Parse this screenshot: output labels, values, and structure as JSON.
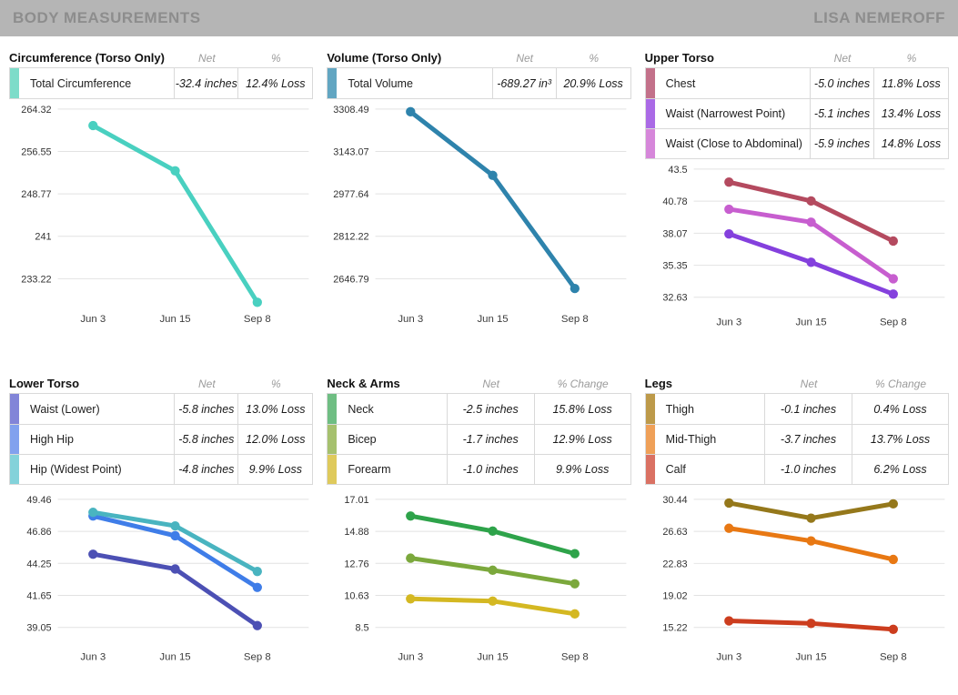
{
  "header": {
    "title": "BODY MEASUREMENTS",
    "user": "LISA NEMEROFF"
  },
  "chart_data": [
    {
      "type": "line",
      "title": "Circumference (Torso Only)",
      "columns": {
        "net": "Net",
        "pct": "%"
      },
      "categories": [
        "Jun 3",
        "Jun 15",
        "Sep 8"
      ],
      "y_ticks": [
        "264.32",
        "256.55",
        "248.77",
        "241",
        "233.22"
      ],
      "layout": {
        "label_col": "wide",
        "chart_size": "tall",
        "grid": "horizontal-only"
      },
      "series": [
        {
          "name": "Total Circumference",
          "net": "-32.4 inches",
          "pct": "12.4% Loss",
          "color": "#49d0c0",
          "swatch": "#7ddcc9",
          "values": [
            261.3,
            253.0,
            228.9
          ]
        }
      ]
    },
    {
      "type": "line",
      "title": "Volume (Torso Only)",
      "columns": {
        "net": "Net",
        "pct": "%"
      },
      "categories": [
        "Jun 3",
        "Jun 15",
        "Sep 8"
      ],
      "y_ticks": [
        "3308.49",
        "3143.07",
        "2977.64",
        "2812.22",
        "2646.79"
      ],
      "layout": {
        "label_col": "wide",
        "chart_size": "tall",
        "grid": "horizontal-only"
      },
      "series": [
        {
          "name": "Total Volume",
          "net": "-689.27 in³",
          "pct": "20.9% Loss",
          "color": "#2e83ac",
          "swatch": "#62a6c2",
          "values": [
            3298.2,
            3050.0,
            2608.9
          ]
        }
      ]
    },
    {
      "type": "line",
      "title": "Upper Torso",
      "columns": {
        "net": "Net",
        "pct": "%"
      },
      "categories": [
        "Jun 3",
        "Jun 15",
        "Sep 8"
      ],
      "y_ticks": [
        "43.5",
        "40.78",
        "38.07",
        "35.35",
        "32.63"
      ],
      "layout": {
        "label_col": "wide",
        "chart_size": "short-top",
        "grid": "horizontal-only"
      },
      "series": [
        {
          "name": "Chest",
          "net": "-5.0 inches",
          "pct": "11.8% Loss",
          "color": "#b44a5f",
          "swatch": "#c3718a",
          "values": [
            42.4,
            40.8,
            37.4
          ]
        },
        {
          "name": "Waist (Narrowest Point)",
          "net": "-5.1 inches",
          "pct": "13.4% Loss",
          "color": "#8440dd",
          "swatch": "#aa6ae6",
          "values": [
            38.0,
            35.6,
            32.9
          ]
        },
        {
          "name": "Waist (Close to Abdominal)",
          "net": "-5.9 inches",
          "pct": "14.8% Loss",
          "color": "#c75ecf",
          "swatch": "#d687da",
          "values": [
            40.1,
            39.0,
            34.2
          ]
        }
      ]
    },
    {
      "type": "line",
      "title": "Lower Torso",
      "columns": {
        "net": "Net",
        "pct": "%"
      },
      "categories": [
        "Jun 3",
        "Jun 15",
        "Sep 8"
      ],
      "y_ticks": [
        "49.46",
        "46.86",
        "44.25",
        "41.65",
        "39.05"
      ],
      "layout": {
        "label_col": "wide",
        "chart_size": "bottom",
        "grid": "horizontal-only"
      },
      "series": [
        {
          "name": "Waist (Lower)",
          "net": "-5.8 inches",
          "pct": "13.0% Loss",
          "color": "#4c50b4",
          "swatch": "#8285d8",
          "values": [
            45.0,
            43.8,
            39.2
          ]
        },
        {
          "name": "High Hip",
          "net": "-5.8 inches",
          "pct": "12.0% Loss",
          "color": "#3f7de8",
          "swatch": "#81a1ee",
          "values": [
            48.1,
            46.5,
            42.3
          ]
        },
        {
          "name": "Hip (Widest Point)",
          "net": "-4.8 inches",
          "pct": "9.9% Loss",
          "color": "#49b4c0",
          "swatch": "#83d2da",
          "values": [
            48.4,
            47.3,
            43.6
          ]
        }
      ]
    },
    {
      "type": "line",
      "title": "Neck & Arms",
      "columns": {
        "net": "Net",
        "pct": "% Change"
      },
      "categories": [
        "Jun 3",
        "Jun 15",
        "Sep 8"
      ],
      "y_ticks": [
        "17.01",
        "14.88",
        "12.76",
        "10.63",
        "8.5"
      ],
      "layout": {
        "label_col": "narrow",
        "chart_size": "bottom",
        "grid": "horizontal-only"
      },
      "series": [
        {
          "name": "Neck",
          "net": "-2.5 inches",
          "pct": "15.8% Loss",
          "color": "#2ea34a",
          "swatch": "#6fbe83",
          "values": [
            15.9,
            14.9,
            13.4
          ]
        },
        {
          "name": "Bicep",
          "net": "-1.7 inches",
          "pct": "12.9% Loss",
          "color": "#7ba83c",
          "swatch": "#a6c16e",
          "values": [
            13.1,
            12.3,
            11.4
          ]
        },
        {
          "name": "Forearm",
          "net": "-1.0 inches",
          "pct": "9.9% Loss",
          "color": "#d4b822",
          "swatch": "#dfca5c",
          "values": [
            10.4,
            10.25,
            9.4
          ]
        }
      ]
    },
    {
      "type": "line",
      "title": "Legs",
      "columns": {
        "net": "Net",
        "pct": "% Change"
      },
      "categories": [
        "Jun 3",
        "Jun 15",
        "Sep 8"
      ],
      "y_ticks": [
        "30.44",
        "26.63",
        "22.83",
        "19.02",
        "15.22"
      ],
      "layout": {
        "label_col": "narrow",
        "chart_size": "bottom",
        "grid": "horizontal-only"
      },
      "series": [
        {
          "name": "Thigh",
          "net": "-0.1 inches",
          "pct": "0.4% Loss",
          "color": "#95781b",
          "swatch": "#bd9a4a",
          "values": [
            30.0,
            28.2,
            29.9
          ]
        },
        {
          "name": "Mid-Thigh",
          "net": "-3.7 inches",
          "pct": "13.7% Loss",
          "color": "#e87813",
          "swatch": "#efa058",
          "values": [
            27.0,
            25.5,
            23.3
          ]
        },
        {
          "name": "Calf",
          "net": "-1.0 inches",
          "pct": "6.2% Loss",
          "color": "#cc3d1e",
          "swatch": "#da7163",
          "values": [
            16.0,
            15.7,
            15.0
          ]
        }
      ]
    }
  ]
}
